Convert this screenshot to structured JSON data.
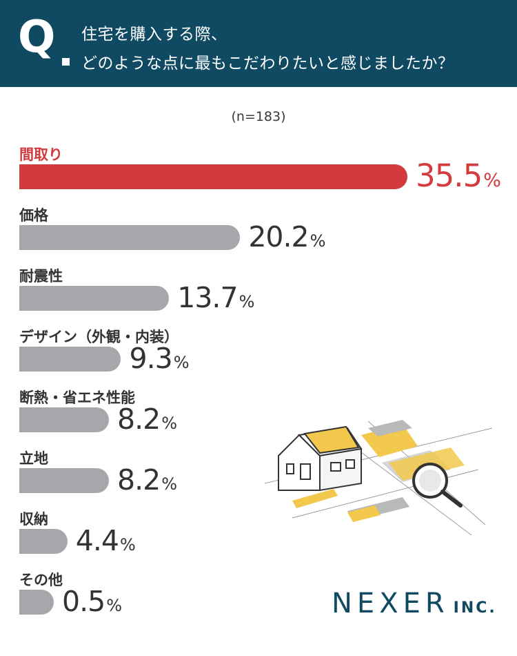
{
  "header": {
    "q_label": "Q",
    "question_line1": "住宅を購入する際、",
    "question_line2": "どのような点に最もこだわりたいと感じましたか？"
  },
  "sample_size": "(n=183)",
  "percent_sign": "%",
  "colors": {
    "header_bg": "#0f4a62",
    "highlight": "#d33a3d",
    "bar_default": "#a6a6ab",
    "text": "#333333"
  },
  "chart_data": {
    "type": "bar",
    "orientation": "horizontal",
    "categories": [
      "間取り",
      "価格",
      "耐震性",
      "デザイン（外観・内装）",
      "断熱・省エネ性能",
      "立地",
      "収納",
      "その他"
    ],
    "values": [
      35.5,
      20.2,
      13.7,
      9.3,
      8.2,
      8.2,
      4.4,
      0.5
    ],
    "value_labels": [
      "35.5",
      "20.2",
      "13.7",
      "9.3",
      "8.2",
      "8.2",
      "4.4",
      "0.5"
    ],
    "unit": "%",
    "highlight_index": 0
  },
  "logo": {
    "main": "NEXER",
    "suffix": "INC."
  }
}
